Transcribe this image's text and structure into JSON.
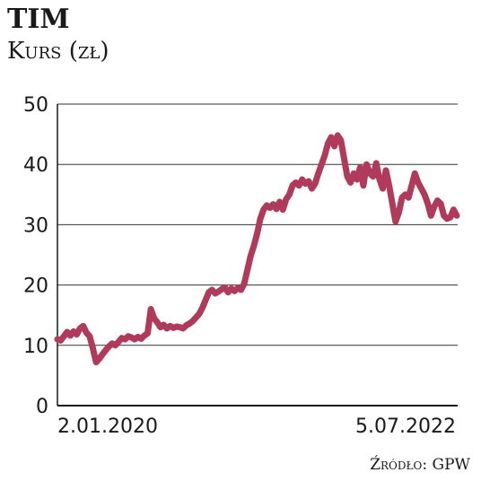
{
  "chart_data": {
    "type": "line",
    "title": "TIM",
    "subtitle": "Kurs (zł)",
    "source": "Źródło: GPW",
    "xlabel": "",
    "ylabel": "",
    "ylim": [
      0,
      50
    ],
    "yticks": [
      0,
      10,
      20,
      30,
      40,
      50
    ],
    "x_tick_labels": [
      "2.01.2020",
      "5.07.2022"
    ],
    "grid": true,
    "line_color": "#b03a5b",
    "series": [
      {
        "values": [
          11.0,
          10.8,
          11.5,
          12.2,
          11.6,
          12.3,
          11.8,
          12.8,
          13.2,
          12.1,
          11.5,
          9.5,
          7.2,
          7.8,
          8.5,
          9.2,
          9.8,
          10.3,
          10.0,
          10.6,
          11.2,
          11.0,
          11.5,
          11.3,
          11.0,
          11.4,
          11.1,
          11.6,
          12.0,
          16.0,
          14.5,
          13.8,
          13.0,
          13.4,
          12.8,
          13.2,
          12.9,
          13.1,
          13.0,
          12.8,
          13.3,
          13.6,
          14.0,
          14.6,
          15.2,
          16.2,
          17.5,
          18.8,
          19.2,
          18.6,
          18.9,
          19.3,
          19.6,
          18.8,
          19.4,
          19.0,
          19.5,
          19.2,
          20.2,
          22.5,
          24.8,
          26.5,
          28.5,
          31.0,
          32.5,
          33.2,
          32.8,
          33.4,
          32.6,
          33.8,
          32.5,
          34.2,
          35.0,
          36.5,
          37.0,
          36.5,
          37.5,
          36.8,
          37.2,
          36.0,
          36.8,
          38.5,
          40.0,
          41.5,
          43.5,
          44.5,
          43.0,
          44.8,
          44.0,
          41.0,
          38.0,
          37.0,
          38.5,
          37.5,
          39.5,
          36.5,
          40.0,
          38.5,
          38.0,
          40.2,
          37.5,
          36.0,
          39.0,
          36.5,
          33.5,
          30.5,
          32.0,
          34.5,
          35.0,
          34.5,
          36.5,
          38.5,
          37.0,
          36.0,
          35.0,
          33.5,
          31.5,
          33.0,
          34.0,
          33.5,
          31.5,
          31.0,
          31.2,
          32.5,
          31.5
        ]
      }
    ]
  }
}
